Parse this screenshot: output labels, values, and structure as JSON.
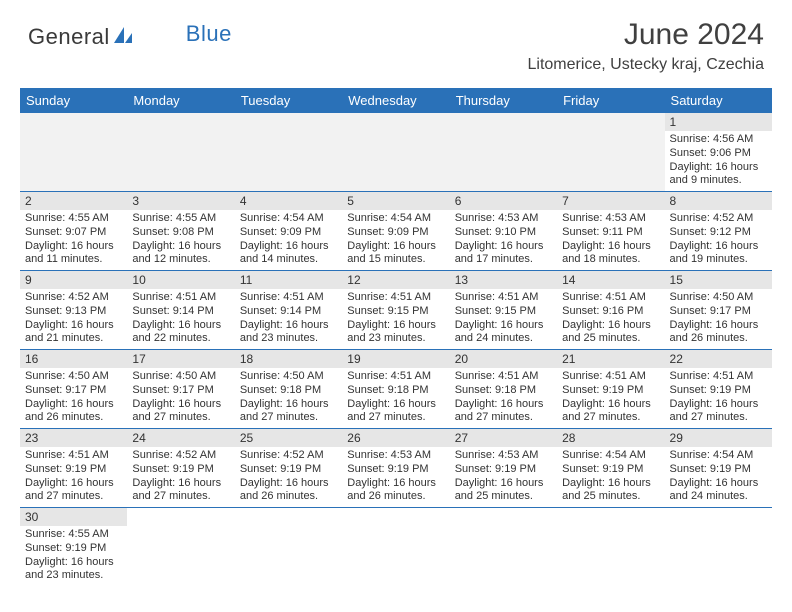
{
  "brand": {
    "part1": "General",
    "part2": "Blue",
    "icon_color": "#2a71b8"
  },
  "title": "June 2024",
  "location": "Litomerice, Ustecky kraj, Czechia",
  "colors": {
    "header_bg": "#2a71b8",
    "header_fg": "#ffffff",
    "daynum_bg": "#e6e6e6",
    "empty_bg": "#f2f2f2",
    "rule": "#2a71b8",
    "text": "#333333"
  },
  "day_headers": [
    "Sunday",
    "Monday",
    "Tuesday",
    "Wednesday",
    "Thursday",
    "Friday",
    "Saturday"
  ],
  "weeks": [
    [
      null,
      null,
      null,
      null,
      null,
      null,
      {
        "n": "1",
        "sr": "Sunrise: 4:56 AM",
        "ss": "Sunset: 9:06 PM",
        "d1": "Daylight: 16 hours",
        "d2": "and 9 minutes."
      }
    ],
    [
      {
        "n": "2",
        "sr": "Sunrise: 4:55 AM",
        "ss": "Sunset: 9:07 PM",
        "d1": "Daylight: 16 hours",
        "d2": "and 11 minutes."
      },
      {
        "n": "3",
        "sr": "Sunrise: 4:55 AM",
        "ss": "Sunset: 9:08 PM",
        "d1": "Daylight: 16 hours",
        "d2": "and 12 minutes."
      },
      {
        "n": "4",
        "sr": "Sunrise: 4:54 AM",
        "ss": "Sunset: 9:09 PM",
        "d1": "Daylight: 16 hours",
        "d2": "and 14 minutes."
      },
      {
        "n": "5",
        "sr": "Sunrise: 4:54 AM",
        "ss": "Sunset: 9:09 PM",
        "d1": "Daylight: 16 hours",
        "d2": "and 15 minutes."
      },
      {
        "n": "6",
        "sr": "Sunrise: 4:53 AM",
        "ss": "Sunset: 9:10 PM",
        "d1": "Daylight: 16 hours",
        "d2": "and 17 minutes."
      },
      {
        "n": "7",
        "sr": "Sunrise: 4:53 AM",
        "ss": "Sunset: 9:11 PM",
        "d1": "Daylight: 16 hours",
        "d2": "and 18 minutes."
      },
      {
        "n": "8",
        "sr": "Sunrise: 4:52 AM",
        "ss": "Sunset: 9:12 PM",
        "d1": "Daylight: 16 hours",
        "d2": "and 19 minutes."
      }
    ],
    [
      {
        "n": "9",
        "sr": "Sunrise: 4:52 AM",
        "ss": "Sunset: 9:13 PM",
        "d1": "Daylight: 16 hours",
        "d2": "and 21 minutes."
      },
      {
        "n": "10",
        "sr": "Sunrise: 4:51 AM",
        "ss": "Sunset: 9:14 PM",
        "d1": "Daylight: 16 hours",
        "d2": "and 22 minutes."
      },
      {
        "n": "11",
        "sr": "Sunrise: 4:51 AM",
        "ss": "Sunset: 9:14 PM",
        "d1": "Daylight: 16 hours",
        "d2": "and 23 minutes."
      },
      {
        "n": "12",
        "sr": "Sunrise: 4:51 AM",
        "ss": "Sunset: 9:15 PM",
        "d1": "Daylight: 16 hours",
        "d2": "and 23 minutes."
      },
      {
        "n": "13",
        "sr": "Sunrise: 4:51 AM",
        "ss": "Sunset: 9:15 PM",
        "d1": "Daylight: 16 hours",
        "d2": "and 24 minutes."
      },
      {
        "n": "14",
        "sr": "Sunrise: 4:51 AM",
        "ss": "Sunset: 9:16 PM",
        "d1": "Daylight: 16 hours",
        "d2": "and 25 minutes."
      },
      {
        "n": "15",
        "sr": "Sunrise: 4:50 AM",
        "ss": "Sunset: 9:17 PM",
        "d1": "Daylight: 16 hours",
        "d2": "and 26 minutes."
      }
    ],
    [
      {
        "n": "16",
        "sr": "Sunrise: 4:50 AM",
        "ss": "Sunset: 9:17 PM",
        "d1": "Daylight: 16 hours",
        "d2": "and 26 minutes."
      },
      {
        "n": "17",
        "sr": "Sunrise: 4:50 AM",
        "ss": "Sunset: 9:17 PM",
        "d1": "Daylight: 16 hours",
        "d2": "and 27 minutes."
      },
      {
        "n": "18",
        "sr": "Sunrise: 4:50 AM",
        "ss": "Sunset: 9:18 PM",
        "d1": "Daylight: 16 hours",
        "d2": "and 27 minutes."
      },
      {
        "n": "19",
        "sr": "Sunrise: 4:51 AM",
        "ss": "Sunset: 9:18 PM",
        "d1": "Daylight: 16 hours",
        "d2": "and 27 minutes."
      },
      {
        "n": "20",
        "sr": "Sunrise: 4:51 AM",
        "ss": "Sunset: 9:18 PM",
        "d1": "Daylight: 16 hours",
        "d2": "and 27 minutes."
      },
      {
        "n": "21",
        "sr": "Sunrise: 4:51 AM",
        "ss": "Sunset: 9:19 PM",
        "d1": "Daylight: 16 hours",
        "d2": "and 27 minutes."
      },
      {
        "n": "22",
        "sr": "Sunrise: 4:51 AM",
        "ss": "Sunset: 9:19 PM",
        "d1": "Daylight: 16 hours",
        "d2": "and 27 minutes."
      }
    ],
    [
      {
        "n": "23",
        "sr": "Sunrise: 4:51 AM",
        "ss": "Sunset: 9:19 PM",
        "d1": "Daylight: 16 hours",
        "d2": "and 27 minutes."
      },
      {
        "n": "24",
        "sr": "Sunrise: 4:52 AM",
        "ss": "Sunset: 9:19 PM",
        "d1": "Daylight: 16 hours",
        "d2": "and 27 minutes."
      },
      {
        "n": "25",
        "sr": "Sunrise: 4:52 AM",
        "ss": "Sunset: 9:19 PM",
        "d1": "Daylight: 16 hours",
        "d2": "and 26 minutes."
      },
      {
        "n": "26",
        "sr": "Sunrise: 4:53 AM",
        "ss": "Sunset: 9:19 PM",
        "d1": "Daylight: 16 hours",
        "d2": "and 26 minutes."
      },
      {
        "n": "27",
        "sr": "Sunrise: 4:53 AM",
        "ss": "Sunset: 9:19 PM",
        "d1": "Daylight: 16 hours",
        "d2": "and 25 minutes."
      },
      {
        "n": "28",
        "sr": "Sunrise: 4:54 AM",
        "ss": "Sunset: 9:19 PM",
        "d1": "Daylight: 16 hours",
        "d2": "and 25 minutes."
      },
      {
        "n": "29",
        "sr": "Sunrise: 4:54 AM",
        "ss": "Sunset: 9:19 PM",
        "d1": "Daylight: 16 hours",
        "d2": "and 24 minutes."
      }
    ],
    [
      {
        "n": "30",
        "sr": "Sunrise: 4:55 AM",
        "ss": "Sunset: 9:19 PM",
        "d1": "Daylight: 16 hours",
        "d2": "and 23 minutes."
      },
      null,
      null,
      null,
      null,
      null,
      null
    ]
  ]
}
